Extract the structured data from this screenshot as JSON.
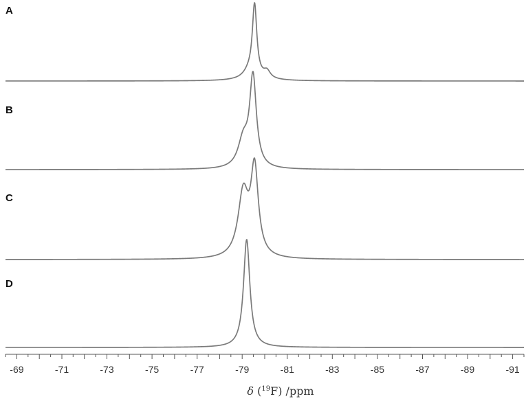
{
  "chart_data": {
    "type": "line",
    "title": "",
    "xlabel": "δ (19F) /ppm",
    "xlabel_parts": {
      "symbol": "δ",
      "isotope_mass": "19",
      "element": "F",
      "unit": "/ppm"
    },
    "ylabel": "",
    "xlim": [
      -68.5,
      -91.5
    ],
    "x_reversed": true,
    "xticks": [
      -69,
      -71,
      -73,
      -75,
      -77,
      -79,
      -81,
      -83,
      -85,
      -87,
      -89,
      -91
    ],
    "xtick_labels": [
      "-69",
      "-71",
      "-73",
      "-75",
      "-77",
      "-79",
      "-81",
      "-83",
      "-85",
      "-87",
      "-89",
      "-91"
    ],
    "minor_tick_step": 0.5,
    "grid": false,
    "legend": "none",
    "line_color": "#7a7a7a",
    "panels": [
      {
        "label": "A",
        "peaks": [
          {
            "center": -79.55,
            "width": 0.12,
            "height": 1.0
          },
          {
            "center": -79.3,
            "width": 0.3,
            "height": 0.09
          },
          {
            "center": -80.1,
            "width": 0.18,
            "height": 0.1
          },
          {
            "center": -79.55,
            "width": 0.8,
            "height": 0.03
          }
        ]
      },
      {
        "label": "B",
        "peaks": [
          {
            "center": -79.48,
            "width": 0.18,
            "height": 0.9
          },
          {
            "center": -79.05,
            "width": 0.28,
            "height": 0.27
          }
        ]
      },
      {
        "label": "C",
        "peaks": [
          {
            "center": -79.55,
            "width": 0.2,
            "height": 0.74
          },
          {
            "center": -79.05,
            "width": 0.28,
            "height": 0.55
          }
        ]
      },
      {
        "label": "D",
        "peaks": [
          {
            "center": -79.2,
            "width": 0.17,
            "height": 1.0
          }
        ]
      }
    ]
  }
}
